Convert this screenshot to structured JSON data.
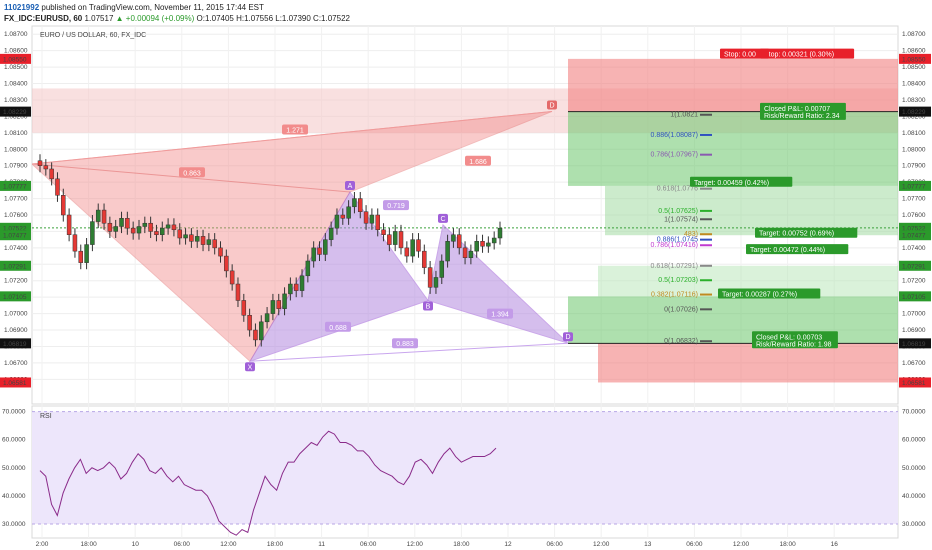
{
  "header": {
    "user": "11021992",
    "published": "published on TradingView.com, November 11, 2015 17:44 EST",
    "symbol": "FX_IDC:EURUSD, 60",
    "last": "1.07517",
    "change": "▲ +0.00094 (+0.09%)",
    "ohlc": "O:1.07405 H:1.07556 L:1.07390 C:1.07522"
  },
  "chart_data": [
    {
      "type": "candlestick",
      "title": "EURO / US DOLLAR, 60, FX_IDC",
      "ylim": [
        1.0645,
        1.0875
      ],
      "yticks": [
        "1.08700",
        "1.08600",
        "1.08500",
        "1.08400",
        "1.08300",
        "1.08200",
        "1.08100",
        "1.08000",
        "1.07900",
        "1.07800",
        "1.07700",
        "1.07600",
        "1.07500",
        "1.07400",
        "1.07300",
        "1.07200",
        "1.07100",
        "1.07000",
        "1.06900",
        "1.06800",
        "1.06700",
        "1.06600"
      ],
      "xticks": [
        "2:00",
        "18:00",
        "10",
        "06:00",
        "12:00",
        "18:00",
        "11",
        "06:00",
        "12:00",
        "18:00",
        "12",
        "06:00",
        "12:00",
        "13",
        "06:00",
        "12:00",
        "18:00",
        "16"
      ],
      "close_series": [
        1.079,
        1.0788,
        1.0782,
        1.0772,
        1.076,
        1.0748,
        1.0738,
        1.0731,
        1.0742,
        1.0756,
        1.0763,
        1.0755,
        1.075,
        1.0753,
        1.0758,
        1.0752,
        1.0749,
        1.0753,
        1.0755,
        1.075,
        1.0748,
        1.0752,
        1.0754,
        1.0751,
        1.0746,
        1.0748,
        1.0744,
        1.0747,
        1.0742,
        1.0745,
        1.074,
        1.0735,
        1.0726,
        1.0718,
        1.0708,
        1.0699,
        1.069,
        1.0684,
        1.0695,
        1.07,
        1.0708,
        1.0703,
        1.0712,
        1.0718,
        1.0714,
        1.0723,
        1.0732,
        1.074,
        1.0736,
        1.0745,
        1.0752,
        1.076,
        1.0758,
        1.0765,
        1.077,
        1.0762,
        1.0755,
        1.076,
        1.0751,
        1.0748,
        1.0742,
        1.075,
        1.074,
        1.0735,
        1.0745,
        1.0738,
        1.0728,
        1.0716,
        1.0722,
        1.0732,
        1.0744,
        1.0748,
        1.074,
        1.0734,
        1.0738,
        1.0744,
        1.0741,
        1.0743,
        1.0746,
        1.0752
      ],
      "price_labels": [
        {
          "text": "1.08550",
          "color": "#e8202a"
        },
        {
          "text": "1.08229",
          "color": "#111111"
        },
        {
          "text": "1.07777",
          "color": "#2b9a2b"
        },
        {
          "text": "1.07522",
          "color": "#2b9a2b"
        },
        {
          "text": "1.07477",
          "color": "#2b9a2b"
        },
        {
          "text": "1.07291",
          "color": "#2b9a2b"
        },
        {
          "text": "1.07105",
          "color": "#2b9a2b"
        },
        {
          "text": "1.06819",
          "color": "#111111"
        },
        {
          "text": "1.06581",
          "color": "#e8202a"
        }
      ],
      "pattern_points": [
        {
          "label": "X",
          "price": 1.0671
        },
        {
          "label": "A",
          "price": 1.0774
        },
        {
          "label": "B",
          "price": 1.0708
        },
        {
          "label": "C",
          "price": 1.0754
        },
        {
          "label": "D",
          "price": 1.0682
        },
        {
          "label": "D",
          "price": 1.0823
        }
      ],
      "pattern_ratios": [
        "1.271",
        "1.686",
        "0.863",
        "0.719",
        "0.688",
        "1.394",
        "0.883"
      ],
      "fib_levels_upper": [
        {
          "text": "1(1.0821",
          "price": 1.0821,
          "color": "#555555"
        },
        {
          "text": "0.886(1.08087)",
          "price": 1.08087,
          "color": "#3050c0"
        },
        {
          "text": "0.786(1.07967)",
          "price": 1.07967,
          "color": "#8a5ab0"
        },
        {
          "text": "0.618(1.0776",
          "price": 1.0776,
          "color": "#888888"
        },
        {
          "text": "0.5(1.07625)",
          "price": 1.07625,
          "color": "#2bb02b"
        },
        {
          "text": "1(1.07574)",
          "price": 1.07574,
          "color": "#555555"
        },
        {
          "text": "0.886(1.0745",
          "price": 1.0745,
          "color": "#3050c0"
        },
        {
          "text": "0.786(1.07416)",
          "price": 1.07416,
          "color": "#c03ad0"
        },
        {
          "text": "0.618(1.07291)",
          "price": 1.07291,
          "color": "#888888"
        },
        {
          "text": "0.5(1.07203)",
          "price": 1.07203,
          "color": "#2bb02b"
        },
        {
          "text": "0.382(1.07116)",
          "price": 1.07116,
          "color": "#c08a20"
        },
        {
          "text": "0(1.07026)",
          "price": 1.07026,
          "color": "#555555"
        },
        {
          "text": "0(1.06832)",
          "price": 1.06832,
          "color": "#555555"
        },
        {
          "text": "483)",
          "price": 1.07483,
          "color": "#c08a20"
        }
      ],
      "trade_labels": [
        {
          "text": "Stop: 0.00321 (0.30%)",
          "color": "#e8202a"
        },
        {
          "text": "Stop: 0.00",
          "color": "#e8202a"
        },
        {
          "text": "Closed P&L: 0.00707",
          "text2": "Risk/Reward Ratio: 2.34",
          "color": "#2b9a2b"
        },
        {
          "text": "Target: 0.00459 (0.42%)",
          "color": "#2b9a2b"
        },
        {
          "text": "Target: 0.00752 (0.69%)",
          "color": "#2b9a2b"
        },
        {
          "text": "Target: 0.00472 (0.44%)",
          "color": "#2b9a2b"
        },
        {
          "text": "Target: 0.00287 (0.27%)",
          "color": "#2b9a2b"
        },
        {
          "text": "Closed P&L: 0.00703",
          "text2": "Risk/Reward Ratio: 1.98",
          "color": "#2b9a2b"
        }
      ],
      "colors": {
        "up": "#2e7d32",
        "down": "#e53935",
        "bear_pattern": "#f28c8c",
        "bull_pattern": "#b38ae0"
      }
    },
    {
      "type": "line",
      "title": "RSI",
      "ylim": [
        25,
        72
      ],
      "yticks": [
        "70.0000",
        "60.0000",
        "50.0000",
        "40.0000",
        "30.0000"
      ],
      "values": [
        49,
        47,
        37,
        33,
        41,
        46,
        50,
        53,
        48,
        50,
        49,
        50,
        52,
        50,
        46,
        48,
        52,
        55,
        53,
        49,
        48,
        50,
        47,
        45,
        47,
        44,
        43,
        42,
        42,
        40,
        36,
        31,
        29,
        27,
        26,
        28,
        27,
        35,
        41,
        47,
        44,
        42,
        48,
        52,
        52,
        55,
        57,
        59,
        58,
        61,
        63,
        62,
        59,
        59,
        58,
        56,
        56,
        54,
        51,
        49,
        48,
        47,
        45,
        44,
        47,
        52,
        53,
        51,
        48,
        52,
        55,
        57,
        54,
        52,
        53,
        54,
        54,
        54,
        55,
        57
      ]
    }
  ]
}
